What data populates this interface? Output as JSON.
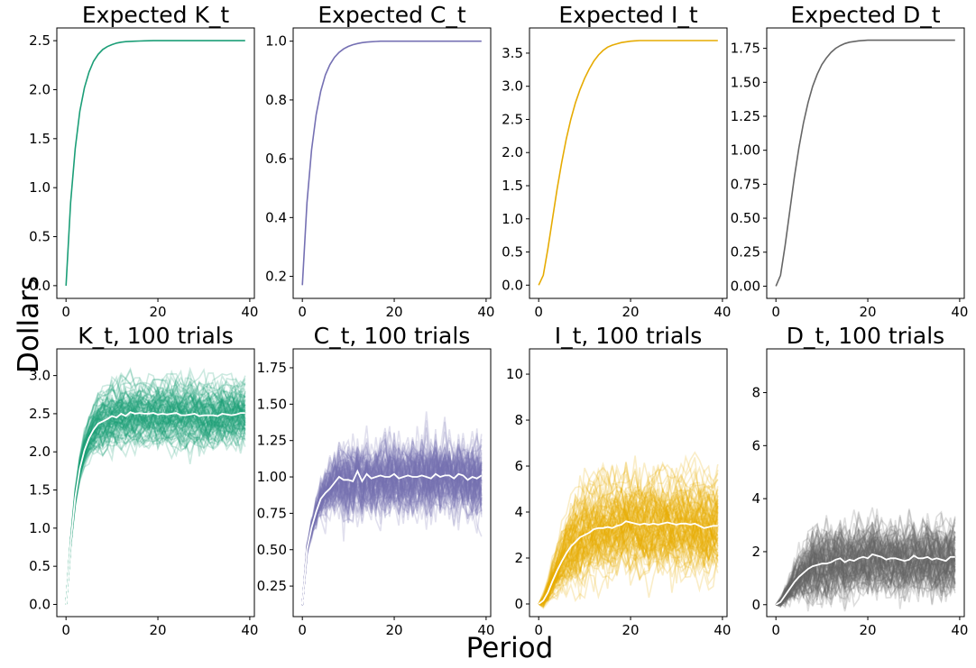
{
  "figure": {
    "ylabel": "Dollars",
    "xlabel": "Period"
  },
  "colors": {
    "green": "#1b9e77",
    "purple": "#7570b3",
    "yellow": "#e6ab02",
    "gray": "#666666",
    "mean": "#ffffff"
  },
  "chart_data": [
    {
      "type": "line",
      "title": "Expected K_t",
      "color": "#1b9e77",
      "xlim": [
        -2,
        41
      ],
      "ylim": [
        -0.13,
        2.63
      ],
      "xticks": [
        0,
        20,
        40
      ],
      "yticks": [
        0.0,
        0.5,
        1.0,
        1.5,
        2.0,
        2.5
      ],
      "ytick_labels": [
        "0.0",
        "0.5",
        "1.0",
        "1.5",
        "2.0",
        "2.5"
      ],
      "x": [
        0,
        1,
        2,
        3,
        4,
        5,
        6,
        7,
        8,
        9,
        10,
        11,
        12,
        13,
        14,
        15,
        16,
        17,
        18,
        19,
        20,
        21,
        22,
        23,
        24,
        25,
        26,
        27,
        28,
        29,
        30,
        31,
        32,
        33,
        34,
        35,
        36,
        37,
        38,
        39
      ],
      "values": [
        0.0,
        0.85,
        1.4,
        1.78,
        2.02,
        2.18,
        2.29,
        2.36,
        2.41,
        2.44,
        2.46,
        2.475,
        2.485,
        2.49,
        2.493,
        2.495,
        2.497,
        2.498,
        2.499,
        2.5,
        2.5,
        2.5,
        2.5,
        2.5,
        2.5,
        2.5,
        2.5,
        2.5,
        2.5,
        2.5,
        2.5,
        2.5,
        2.5,
        2.5,
        2.5,
        2.5,
        2.5,
        2.5,
        2.5,
        2.5
      ]
    },
    {
      "type": "line",
      "title": "Expected C_t",
      "color": "#7570b3",
      "xlim": [
        -2,
        41
      ],
      "ylim": [
        0.125,
        1.045
      ],
      "xticks": [
        0,
        20,
        40
      ],
      "yticks": [
        0.2,
        0.4,
        0.6,
        0.8,
        1.0
      ],
      "ytick_labels": [
        "0.2",
        "0.4",
        "0.6",
        "0.8",
        "1.0"
      ],
      "x": [
        0,
        1,
        2,
        3,
        4,
        5,
        6,
        7,
        8,
        9,
        10,
        11,
        12,
        13,
        14,
        15,
        16,
        17,
        18,
        19,
        20,
        21,
        22,
        23,
        24,
        25,
        26,
        27,
        28,
        29,
        30,
        31,
        32,
        33,
        34,
        35,
        36,
        37,
        38,
        39
      ],
      "values": [
        0.17,
        0.45,
        0.63,
        0.75,
        0.83,
        0.885,
        0.92,
        0.945,
        0.962,
        0.974,
        0.982,
        0.988,
        0.992,
        0.995,
        0.997,
        0.998,
        0.999,
        1.0,
        1.0,
        1.0,
        1.0,
        1.0,
        1.0,
        1.0,
        1.0,
        1.0,
        1.0,
        1.0,
        1.0,
        1.0,
        1.0,
        1.0,
        1.0,
        1.0,
        1.0,
        1.0,
        1.0,
        1.0,
        1.0,
        1.0
      ]
    },
    {
      "type": "line",
      "title": "Expected I_t",
      "color": "#e6ab02",
      "xlim": [
        -2,
        41
      ],
      "ylim": [
        -0.2,
        3.88
      ],
      "xticks": [
        0,
        20,
        40
      ],
      "yticks": [
        0.0,
        0.5,
        1.0,
        1.5,
        2.0,
        2.5,
        3.0,
        3.5
      ],
      "ytick_labels": [
        "0.0",
        "0.5",
        "1.0",
        "1.5",
        "2.0",
        "2.5",
        "3.0",
        "3.5"
      ],
      "x": [
        0,
        1,
        2,
        3,
        4,
        5,
        6,
        7,
        8,
        9,
        10,
        11,
        12,
        13,
        14,
        15,
        16,
        17,
        18,
        19,
        20,
        21,
        22,
        23,
        24,
        25,
        26,
        27,
        28,
        29,
        30,
        31,
        32,
        33,
        34,
        35,
        36,
        37,
        38,
        39
      ],
      "values": [
        0.0,
        0.15,
        0.55,
        1.0,
        1.45,
        1.85,
        2.2,
        2.5,
        2.75,
        2.95,
        3.12,
        3.26,
        3.38,
        3.47,
        3.54,
        3.59,
        3.62,
        3.64,
        3.66,
        3.67,
        3.68,
        3.685,
        3.69,
        3.69,
        3.69,
        3.69,
        3.69,
        3.69,
        3.69,
        3.69,
        3.69,
        3.69,
        3.69,
        3.69,
        3.69,
        3.69,
        3.69,
        3.69,
        3.69,
        3.69
      ]
    },
    {
      "type": "line",
      "title": "Expected D_t",
      "color": "#666666",
      "xlim": [
        -2,
        41
      ],
      "ylim": [
        -0.09,
        1.9
      ],
      "xticks": [
        0,
        20,
        40
      ],
      "yticks": [
        0.0,
        0.25,
        0.5,
        0.75,
        1.0,
        1.25,
        1.5,
        1.75
      ],
      "ytick_labels": [
        "0.00",
        "0.25",
        "0.50",
        "0.75",
        "1.00",
        "1.25",
        "1.50",
        "1.75"
      ],
      "x": [
        0,
        1,
        2,
        3,
        4,
        5,
        6,
        7,
        8,
        9,
        10,
        11,
        12,
        13,
        14,
        15,
        16,
        17,
        18,
        19,
        20,
        21,
        22,
        23,
        24,
        25,
        26,
        27,
        28,
        29,
        30,
        31,
        32,
        33,
        34,
        35,
        36,
        37,
        38,
        39
      ],
      "values": [
        0.0,
        0.08,
        0.3,
        0.55,
        0.8,
        1.02,
        1.2,
        1.35,
        1.47,
        1.56,
        1.63,
        1.68,
        1.72,
        1.75,
        1.77,
        1.785,
        1.795,
        1.8,
        1.805,
        1.808,
        1.81,
        1.81,
        1.81,
        1.81,
        1.81,
        1.81,
        1.81,
        1.81,
        1.81,
        1.81,
        1.81,
        1.81,
        1.81,
        1.81,
        1.81,
        1.81,
        1.81,
        1.81,
        1.81,
        1.81
      ]
    },
    {
      "type": "line",
      "title": "K_t, 100 trials",
      "color": "#1b9e77",
      "n_trials": 100,
      "xlim": [
        -2,
        41
      ],
      "ylim": [
        -0.16,
        3.35
      ],
      "xticks": [
        0,
        20,
        40
      ],
      "yticks": [
        0.0,
        0.5,
        1.0,
        1.5,
        2.0,
        2.5,
        3.0
      ],
      "ytick_labels": [
        "0.0",
        "0.5",
        "1.0",
        "1.5",
        "2.0",
        "2.5",
        "3.0"
      ],
      "trial_spread": 0.24,
      "trial_noise": 0.09,
      "x": [
        0,
        1,
        2,
        3,
        4,
        5,
        6,
        7,
        8,
        9,
        10,
        11,
        12,
        13,
        14,
        15,
        16,
        17,
        18,
        19,
        20,
        21,
        22,
        23,
        24,
        25,
        26,
        27,
        28,
        29,
        30,
        31,
        32,
        33,
        34,
        35,
        36,
        37,
        38,
        39
      ],
      "mean_values": [
        0.0,
        0.8,
        1.4,
        1.78,
        2.02,
        2.18,
        2.29,
        2.37,
        2.4,
        2.43,
        2.47,
        2.45,
        2.5,
        2.47,
        2.52,
        2.5,
        2.51,
        2.5,
        2.5,
        2.51,
        2.49,
        2.5,
        2.49,
        2.5,
        2.51,
        2.48,
        2.48,
        2.49,
        2.5,
        2.47,
        2.48,
        2.48,
        2.48,
        2.47,
        2.5,
        2.49,
        2.48,
        2.49,
        2.51,
        2.51
      ]
    },
    {
      "type": "line",
      "title": "C_t, 100 trials",
      "color": "#7570b3",
      "n_trials": 100,
      "xlim": [
        -2,
        41
      ],
      "ylim": [
        0.04,
        1.88
      ],
      "xticks": [
        0,
        20,
        40
      ],
      "yticks": [
        0.25,
        0.5,
        0.75,
        1.0,
        1.25,
        1.5,
        1.75
      ],
      "ytick_labels": [
        "0.25",
        "0.50",
        "0.75",
        "1.00",
        "1.25",
        "1.50",
        "1.75"
      ],
      "trial_spread": 0.14,
      "trial_noise": 0.11,
      "x": [
        0,
        1,
        2,
        3,
        4,
        5,
        6,
        7,
        8,
        9,
        10,
        11,
        12,
        13,
        14,
        15,
        16,
        17,
        18,
        19,
        20,
        21,
        22,
        23,
        24,
        25,
        26,
        27,
        28,
        29,
        30,
        31,
        32,
        33,
        34,
        35,
        36,
        37,
        38,
        39
      ],
      "mean_values": [
        0.12,
        0.5,
        0.65,
        0.76,
        0.85,
        0.89,
        0.92,
        0.96,
        1.0,
        0.98,
        0.98,
        0.97,
        1.04,
        0.97,
        1.02,
        0.99,
        1.0,
        1.01,
        1.0,
        1.0,
        1.02,
        0.99,
        1.0,
        1.01,
        1.0,
        1.0,
        1.01,
        1.0,
        0.99,
        1.02,
        1.0,
        1.01,
        1.01,
        0.99,
        1.02,
        1.01,
        0.98,
        1.0,
        0.99,
        1.01
      ]
    },
    {
      "type": "line",
      "title": "I_t, 100 trials",
      "color": "#e6ab02",
      "n_trials": 100,
      "xlim": [
        -2,
        41
      ],
      "ylim": [
        -0.55,
        11.1
      ],
      "xticks": [
        0,
        20,
        40
      ],
      "yticks": [
        0,
        2,
        4,
        6,
        8,
        10
      ],
      "ytick_labels": [
        "0",
        "2",
        "4",
        "6",
        "8",
        "10"
      ],
      "trial_spread": 0.65,
      "trial_noise": 0.5,
      "x": [
        0,
        1,
        2,
        3,
        4,
        5,
        6,
        7,
        8,
        9,
        10,
        11,
        12,
        13,
        14,
        15,
        16,
        17,
        18,
        19,
        20,
        21,
        22,
        23,
        24,
        25,
        26,
        27,
        28,
        29,
        30,
        31,
        32,
        33,
        34,
        35,
        36,
        37,
        38,
        39
      ],
      "mean_values": [
        0.0,
        0.15,
        0.5,
        1.0,
        1.45,
        1.85,
        2.2,
        2.5,
        2.7,
        2.9,
        3.0,
        3.1,
        3.25,
        3.3,
        3.3,
        3.35,
        3.3,
        3.4,
        3.45,
        3.6,
        3.55,
        3.5,
        3.45,
        3.5,
        3.45,
        3.5,
        3.45,
        3.5,
        3.55,
        3.5,
        3.45,
        3.5,
        3.5,
        3.45,
        3.5,
        3.4,
        3.3,
        3.35,
        3.4,
        3.4
      ]
    },
    {
      "type": "line",
      "title": "D_t, 100 trials",
      "color": "#666666",
      "n_trials": 100,
      "xlim": [
        -2,
        41
      ],
      "ylim": [
        -0.45,
        9.65
      ],
      "xticks": [
        0,
        20,
        40
      ],
      "yticks": [
        0,
        2,
        4,
        6,
        8
      ],
      "ytick_labels": [
        "0",
        "2",
        "4",
        "6",
        "8"
      ],
      "trial_spread": 0.6,
      "trial_noise": 0.45,
      "x": [
        0,
        1,
        2,
        3,
        4,
        5,
        6,
        7,
        8,
        9,
        10,
        11,
        12,
        13,
        14,
        15,
        16,
        17,
        18,
        19,
        20,
        21,
        22,
        23,
        24,
        25,
        26,
        27,
        28,
        29,
        30,
        31,
        32,
        33,
        34,
        35,
        36,
        37,
        38,
        39
      ],
      "mean_values": [
        0.0,
        0.1,
        0.35,
        0.6,
        0.85,
        1.05,
        1.2,
        1.35,
        1.45,
        1.5,
        1.55,
        1.55,
        1.6,
        1.7,
        1.75,
        1.6,
        1.7,
        1.65,
        1.75,
        1.8,
        1.75,
        1.9,
        1.85,
        1.8,
        1.7,
        1.75,
        1.75,
        1.7,
        1.65,
        1.7,
        1.85,
        1.75,
        1.75,
        1.8,
        1.7,
        1.75,
        1.7,
        1.65,
        1.8,
        1.8
      ]
    }
  ]
}
